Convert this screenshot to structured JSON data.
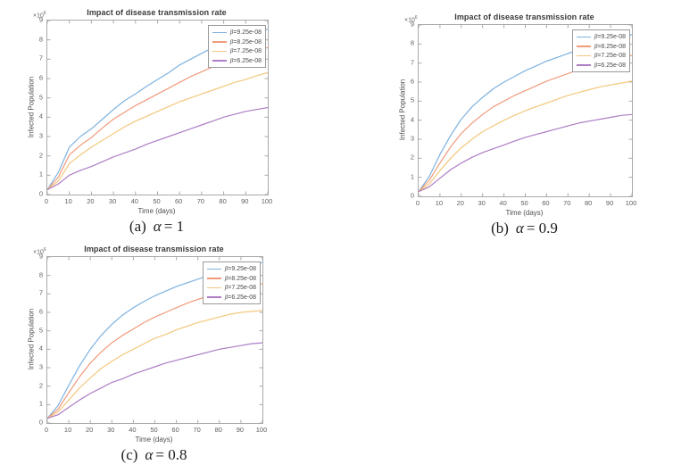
{
  "figure": {
    "background": "#ffffff",
    "axis_color": "#a9a9a9",
    "tick_label_color": "#606060",
    "title_color": "#3a3a3a",
    "label_color": "#4f4f4f"
  },
  "series_colors": {
    "blue": "#7db2e0",
    "orange": "#f09b7b",
    "yellow": "#f3c87d",
    "purple": "#ae7dc5"
  },
  "chart_data": [
    {
      "id": "a",
      "type": "line",
      "title": "Impact of disease transmission rate",
      "xlabel": "Time (days)",
      "ylabel": "Infected Population",
      "y_exponent_base": "×10",
      "y_exponent_power": "6",
      "xlim": [
        0,
        100
      ],
      "ylim": [
        0,
        9
      ],
      "xticks": [
        0,
        10,
        20,
        30,
        40,
        50,
        60,
        70,
        80,
        90,
        100
      ],
      "yticks": [
        0,
        1,
        2,
        3,
        4,
        5,
        6,
        7,
        8,
        9
      ],
      "grid": false,
      "legend_position": "top-right",
      "caption": {
        "prefix": "(a)",
        "symbol": "α",
        "value": "= 1"
      },
      "x": [
        0,
        5,
        10,
        15,
        20,
        25,
        30,
        35,
        40,
        45,
        50,
        55,
        60,
        65,
        70,
        75,
        80,
        85,
        90,
        95,
        100
      ],
      "series": [
        {
          "name": "β=9.25e-08",
          "color": "#7db2e0",
          "y": [
            0.25,
            1.15,
            2.45,
            3.0,
            3.4,
            3.9,
            4.4,
            4.85,
            5.2,
            5.6,
            5.95,
            6.3,
            6.7,
            7.0,
            7.3,
            7.6,
            7.85,
            8.05,
            8.25,
            8.4,
            8.55
          ]
        },
        {
          "name": "β=8.25e-08",
          "color": "#f09b7b",
          "y": [
            0.25,
            0.9,
            2.05,
            2.55,
            2.95,
            3.45,
            3.9,
            4.25,
            4.6,
            4.9,
            5.2,
            5.5,
            5.8,
            6.1,
            6.35,
            6.6,
            6.85,
            7.05,
            7.25,
            7.45,
            7.6
          ]
        },
        {
          "name": "β=7.25e-08",
          "color": "#f3c87d",
          "y": [
            0.25,
            0.7,
            1.6,
            2.05,
            2.45,
            2.8,
            3.15,
            3.5,
            3.8,
            4.05,
            4.3,
            4.55,
            4.8,
            5.0,
            5.2,
            5.4,
            5.6,
            5.8,
            5.95,
            6.15,
            6.3
          ]
        },
        {
          "name": "β=6.25e-08",
          "color": "#ae7dc5",
          "y": [
            0.25,
            0.55,
            1.0,
            1.25,
            1.45,
            1.7,
            1.95,
            2.15,
            2.35,
            2.6,
            2.8,
            3.0,
            3.2,
            3.4,
            3.6,
            3.8,
            4.0,
            4.15,
            4.3,
            4.4,
            4.5
          ]
        }
      ]
    },
    {
      "id": "b",
      "type": "line",
      "title": "Impact of disease transmission rate",
      "xlabel": "Time (days)",
      "ylabel": "Infected Population",
      "y_exponent_base": "×10",
      "y_exponent_power": "6",
      "xlim": [
        0,
        100
      ],
      "ylim": [
        0,
        9
      ],
      "xticks": [
        0,
        10,
        20,
        30,
        40,
        50,
        60,
        70,
        80,
        90,
        100
      ],
      "yticks": [
        0,
        1,
        2,
        3,
        4,
        5,
        6,
        7,
        8,
        9
      ],
      "grid": false,
      "legend_position": "top-right",
      "caption": {
        "prefix": "(b)",
        "symbol": "α",
        "value": "= 0.9"
      },
      "x": [
        0,
        5,
        10,
        15,
        20,
        25,
        30,
        35,
        40,
        45,
        50,
        55,
        60,
        65,
        70,
        75,
        80,
        85,
        90,
        95,
        100
      ],
      "series": [
        {
          "name": "β=9.25e-08",
          "color": "#7db2e0",
          "y": [
            0.25,
            1.05,
            2.2,
            3.2,
            4.05,
            4.7,
            5.2,
            5.65,
            6.0,
            6.3,
            6.6,
            6.85,
            7.1,
            7.3,
            7.5,
            7.7,
            7.9,
            8.05,
            8.2,
            8.35,
            8.5
          ]
        },
        {
          "name": "β=8.25e-08",
          "color": "#f09b7b",
          "y": [
            0.25,
            0.85,
            1.75,
            2.6,
            3.3,
            3.85,
            4.3,
            4.7,
            5.0,
            5.3,
            5.55,
            5.8,
            6.05,
            6.25,
            6.45,
            6.65,
            6.85,
            7.0,
            7.15,
            7.3,
            7.4
          ]
        },
        {
          "name": "β=7.25e-08",
          "color": "#f3c87d",
          "y": [
            0.25,
            0.65,
            1.35,
            2.0,
            2.55,
            3.0,
            3.4,
            3.7,
            4.0,
            4.25,
            4.5,
            4.7,
            4.9,
            5.1,
            5.3,
            5.45,
            5.6,
            5.75,
            5.85,
            5.95,
            6.05
          ]
        },
        {
          "name": "β=6.25e-08",
          "color": "#ae7dc5",
          "y": [
            0.25,
            0.5,
            0.95,
            1.4,
            1.75,
            2.05,
            2.3,
            2.5,
            2.7,
            2.9,
            3.1,
            3.25,
            3.4,
            3.55,
            3.7,
            3.85,
            3.95,
            4.05,
            4.15,
            4.25,
            4.3
          ]
        }
      ]
    },
    {
      "id": "c",
      "type": "line",
      "title": "Impact of disease transmission rate",
      "xlabel": "Time (days)",
      "ylabel": "Infected Population",
      "y_exponent_base": "×10",
      "y_exponent_power": "6",
      "xlim": [
        0,
        100
      ],
      "ylim": [
        0,
        9
      ],
      "xticks": [
        0,
        10,
        20,
        30,
        40,
        50,
        60,
        70,
        80,
        90,
        100
      ],
      "yticks": [
        0,
        1,
        2,
        3,
        4,
        5,
        6,
        7,
        8,
        9
      ],
      "grid": false,
      "legend_position": "top-right",
      "caption": {
        "prefix": "(c)",
        "symbol": "α",
        "value": "= 0.8"
      },
      "x": [
        0,
        5,
        10,
        15,
        20,
        25,
        30,
        35,
        40,
        45,
        50,
        55,
        60,
        65,
        70,
        75,
        80,
        85,
        90,
        95,
        100
      ],
      "series": [
        {
          "name": "β=9.25e-08",
          "color": "#7db2e0",
          "y": [
            0.25,
            0.95,
            2.05,
            3.1,
            4.0,
            4.75,
            5.35,
            5.85,
            6.25,
            6.6,
            6.9,
            7.15,
            7.4,
            7.6,
            7.8,
            8.0,
            8.2,
            8.35,
            8.5,
            8.6,
            8.7
          ]
        },
        {
          "name": "β=8.25e-08",
          "color": "#f09b7b",
          "y": [
            0.25,
            0.75,
            1.65,
            2.5,
            3.25,
            3.85,
            4.35,
            4.75,
            5.1,
            5.45,
            5.75,
            6.0,
            6.25,
            6.5,
            6.7,
            6.9,
            7.05,
            7.2,
            7.35,
            7.45,
            7.55
          ]
        },
        {
          "name": "β=7.25e-08",
          "color": "#f3c87d",
          "y": [
            0.25,
            0.6,
            1.25,
            1.9,
            2.45,
            2.95,
            3.35,
            3.7,
            4.0,
            4.3,
            4.6,
            4.8,
            5.05,
            5.25,
            5.45,
            5.6,
            5.75,
            5.9,
            6.0,
            6.05,
            6.1
          ]
        },
        {
          "name": "β=6.25e-08",
          "color": "#ae7dc5",
          "y": [
            0.25,
            0.45,
            0.85,
            1.25,
            1.6,
            1.9,
            2.2,
            2.4,
            2.65,
            2.85,
            3.05,
            3.25,
            3.4,
            3.55,
            3.7,
            3.85,
            4.0,
            4.1,
            4.2,
            4.3,
            4.35
          ]
        }
      ]
    }
  ]
}
